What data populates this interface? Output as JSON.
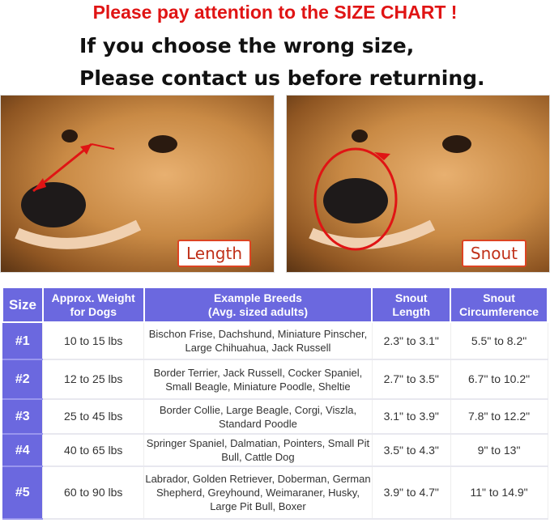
{
  "heading": "Please pay attention to the SIZE CHART !",
  "subheading_line1": "If you choose the wrong size,",
  "subheading_line2": "Please contact us before returning.",
  "photos": [
    {
      "label": "Length"
    },
    {
      "label": "Snout"
    }
  ],
  "accent_color": "#6b68df",
  "heading_color": "#e01414",
  "table": {
    "headers": {
      "size": "Size",
      "weight_1": "Approx. Weight",
      "weight_2": "for Dogs",
      "breeds_1": "Example Breeds",
      "breeds_2": "(Avg. sized adults)",
      "length_1": "Snout",
      "length_2": "Length",
      "circ_1": "Snout",
      "circ_2": "Circumference"
    },
    "rows": [
      {
        "size": "#1",
        "weight": "10 to 15 lbs",
        "breeds": "Bischon Frise, Dachshund, Miniature Pinscher, Large Chihuahua, Jack Russell",
        "length": "2.3\" to 3.1\"",
        "circumference": "5.5\" to 8.2\""
      },
      {
        "size": "#2",
        "weight": "12 to 25 lbs",
        "breeds": "Border Terrier, Jack Russell, Cocker Spaniel, Small Beagle, Miniature Poodle, Sheltie",
        "length": "2.7\" to 3.5\"",
        "circumference": "6.7\" to 10.2\""
      },
      {
        "size": "#3",
        "weight": "25 to 45 lbs",
        "breeds": "Border Collie, Large Beagle, Corgi, Viszla, Standard Poodle",
        "length": "3.1\" to 3.9\"",
        "circumference": "7.8\" to 12.2\""
      },
      {
        "size": "#4",
        "weight": "40 to 65 lbs",
        "breeds": "Springer Spaniel, Dalmatian, Pointers, Small Pit Bull, Cattle Dog",
        "length": "3.5\" to 4.3\"",
        "circumference": "9\" to 13\""
      },
      {
        "size": "#5",
        "weight": "60 to 90 lbs",
        "breeds": "Labrador, Golden Retriever, Doberman, German Shepherd, Greyhound, Weimaraner, Husky, Large Pit Bull, Boxer",
        "length": "3.9\" to 4.7\"",
        "circumference": "11\" to 14.9\""
      }
    ]
  }
}
